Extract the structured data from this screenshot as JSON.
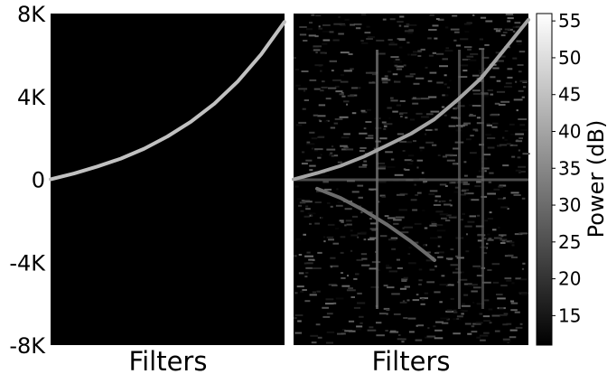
{
  "chart_data": [
    {
      "type": "heatmap",
      "panel": "left",
      "xlabel": "Filters",
      "ylabel": "",
      "ylim": [
        -8000,
        8000
      ],
      "y_ticks": [
        {
          "label": "8K",
          "value": 8000
        },
        {
          "label": "4K",
          "value": 4000
        },
        {
          "label": "0",
          "value": 0
        },
        {
          "label": "-4K",
          "value": -4000
        },
        {
          "label": "-8K",
          "value": -8000
        }
      ],
      "xlim": [
        0,
        1
      ],
      "background_color": "#000000",
      "curves": [
        {
          "description": "ideal filter-bank center frequency trace",
          "x": [
            0.0,
            0.1,
            0.2,
            0.3,
            0.4,
            0.5,
            0.6,
            0.7,
            0.8,
            0.9,
            1.0
          ],
          "y": [
            0,
            280,
            620,
            1000,
            1480,
            2070,
            2780,
            3650,
            4720,
            6030,
            7600
          ],
          "intensity_db": 45
        }
      ]
    },
    {
      "type": "heatmap",
      "panel": "right",
      "xlabel": "Filters",
      "ylim": [
        -8000,
        8000
      ],
      "xlim": [
        0,
        1
      ],
      "background_color": "#000000",
      "curves": [
        {
          "description": "learned filter center frequency trace",
          "x": [
            0.0,
            0.1,
            0.2,
            0.3,
            0.4,
            0.5,
            0.6,
            0.7,
            0.8,
            0.9,
            1.0
          ],
          "y": [
            0,
            300,
            650,
            1100,
            1650,
            2200,
            2900,
            3850,
            4900,
            6300,
            7700
          ],
          "intensity_db": 40
        },
        {
          "description": "mirrored negative-frequency trace",
          "x": [
            0.1,
            0.2,
            0.3,
            0.4,
            0.5,
            0.6
          ],
          "y": [
            -450,
            -900,
            -1500,
            -2200,
            -3000,
            -3900
          ],
          "intensity_db": 30
        }
      ],
      "vertical_lines": [
        {
          "x": 0.35,
          "intensity_db": 32
        },
        {
          "x": 0.7,
          "intensity_db": 28
        },
        {
          "x": 0.8,
          "intensity_db": 26
        }
      ],
      "horizontal_lines": [
        {
          "y": 0,
          "intensity_db": 30
        }
      ],
      "noise_level_db": [
        12,
        30
      ]
    }
  ],
  "colorbar": {
    "label": "Power (dB)",
    "ticks": [
      15,
      20,
      25,
      30,
      35,
      40,
      45,
      50,
      55
    ],
    "range": [
      11,
      56
    ],
    "colormap": "gray"
  }
}
